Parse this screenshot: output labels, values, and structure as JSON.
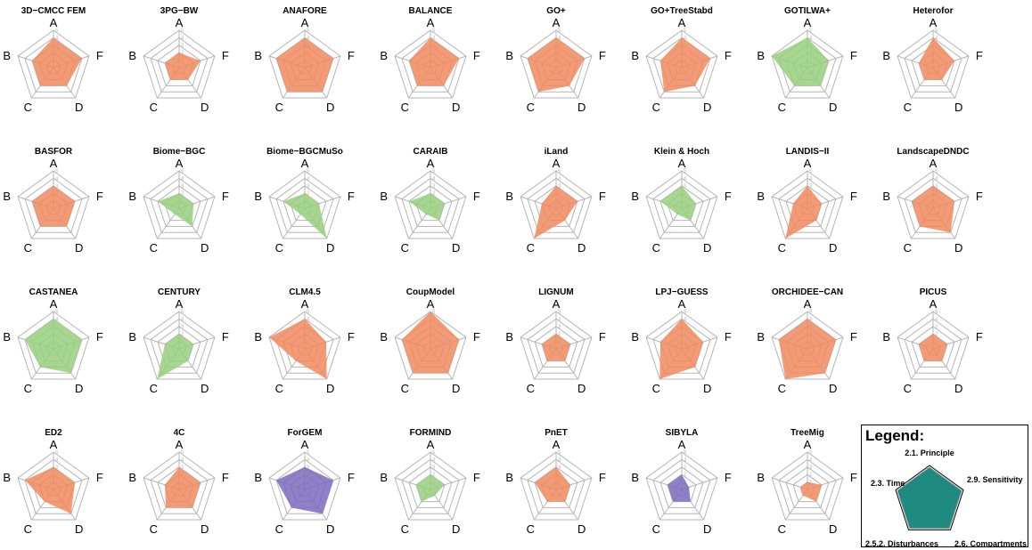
{
  "chart_data": {
    "type": "radar",
    "axes": [
      "A",
      "F",
      "D",
      "C",
      "B"
    ],
    "ticks": [
      "1",
      "2",
      "3",
      "4",
      "5"
    ],
    "rmax": 5,
    "colors": {
      "orange": "#f08a5e",
      "green": "#97cf7c",
      "purple": "#7b6bbd",
      "teal": "#1e8a80"
    },
    "panels": [
      {
        "title": "3D−CMCC FEM",
        "color": "orange",
        "values": [
          4,
          4,
          3,
          3,
          3
        ]
      },
      {
        "title": "3PG−BW",
        "color": "orange",
        "values": [
          2,
          3,
          2,
          2,
          2
        ]
      },
      {
        "title": "ANAFORE",
        "color": "orange",
        "values": [
          4,
          4,
          4,
          4,
          4
        ]
      },
      {
        "title": "BALANCE",
        "color": "orange",
        "values": [
          4,
          4,
          3,
          3,
          3
        ]
      },
      {
        "title": "GO+",
        "color": "orange",
        "values": [
          4,
          4,
          3,
          4,
          4
        ]
      },
      {
        "title": "GO+TreeStabd",
        "color": "orange",
        "values": [
          4,
          4,
          3,
          4,
          3
        ]
      },
      {
        "title": "GOTILWA+",
        "color": "green",
        "values": [
          4,
          3,
          3,
          3,
          5
        ]
      },
      {
        "title": "Heterofor",
        "color": "orange",
        "values": [
          4,
          3,
          2,
          2,
          2
        ]
      },
      {
        "title": "BASFOR",
        "color": "orange",
        "values": [
          3,
          3,
          3,
          3,
          3
        ]
      },
      {
        "title": "Biome−BGC",
        "color": "green",
        "values": [
          2,
          2,
          3,
          1,
          3
        ]
      },
      {
        "title": "Biome−BGCMuSo",
        "color": "green",
        "values": [
          2,
          2,
          5,
          1,
          3
        ]
      },
      {
        "title": "CARAIB",
        "color": "green",
        "values": [
          2,
          2,
          2,
          1,
          3
        ]
      },
      {
        "title": "iLand",
        "color": "orange",
        "values": [
          3,
          3,
          2,
          5,
          2
        ]
      },
      {
        "title": "Klein & Hoch",
        "color": "green",
        "values": [
          3,
          2,
          2,
          1,
          3
        ]
      },
      {
        "title": "LANDIS−II",
        "color": "orange",
        "values": [
          3,
          2,
          2,
          5,
          2
        ]
      },
      {
        "title": "LandscapeDNDC",
        "color": "orange",
        "values": [
          3,
          3,
          4,
          3,
          3
        ]
      },
      {
        "title": "CASTANEA",
        "color": "green",
        "values": [
          4,
          4,
          4,
          3,
          4
        ]
      },
      {
        "title": "CENTURY",
        "color": "green",
        "values": [
          2,
          2,
          2,
          5,
          2
        ]
      },
      {
        "title": "CLM4.5",
        "color": "orange",
        "values": [
          4,
          3,
          5,
          2,
          5
        ]
      },
      {
        "title": "CoupModel",
        "color": "orange",
        "values": [
          5,
          4,
          4,
          4,
          4
        ]
      },
      {
        "title": "LIGNUM",
        "color": "orange",
        "values": [
          2,
          2,
          2,
          2,
          2
        ]
      },
      {
        "title": "LPJ−GUESS",
        "color": "orange",
        "values": [
          4,
          3,
          3,
          5,
          3
        ]
      },
      {
        "title": "ORCHIDEE−CAN",
        "color": "orange",
        "values": [
          4,
          4,
          4,
          5,
          4
        ]
      },
      {
        "title": "PICUS",
        "color": "orange",
        "values": [
          2,
          2,
          2,
          2,
          2
        ]
      },
      {
        "title": "ED2",
        "color": "orange",
        "values": [
          3,
          3,
          4,
          2,
          4
        ]
      },
      {
        "title": "4C",
        "color": "orange",
        "values": [
          3,
          3,
          3,
          3,
          2
        ]
      },
      {
        "title": "ForGEM",
        "color": "purple",
        "values": [
          3,
          4,
          4,
          3,
          4
        ]
      },
      {
        "title": "FORMIND",
        "color": "green",
        "values": [
          2,
          2,
          1,
          2,
          2
        ]
      },
      {
        "title": "PnET",
        "color": "orange",
        "values": [
          3,
          2,
          2,
          2,
          3
        ]
      },
      {
        "title": "SIBYLA",
        "color": "purple",
        "values": [
          2,
          1,
          2,
          2,
          2
        ]
      },
      {
        "title": "TreeMig",
        "color": "orange",
        "values": [
          1,
          2,
          2,
          1,
          1
        ]
      }
    ],
    "legend": {
      "title": "Legend:",
      "labels": [
        "2.1. Principle",
        "2.9. Sensitivity",
        "2.6. Compartments",
        "2.5.2. Disturbances",
        "2.3. Time"
      ],
      "color": "teal"
    }
  }
}
